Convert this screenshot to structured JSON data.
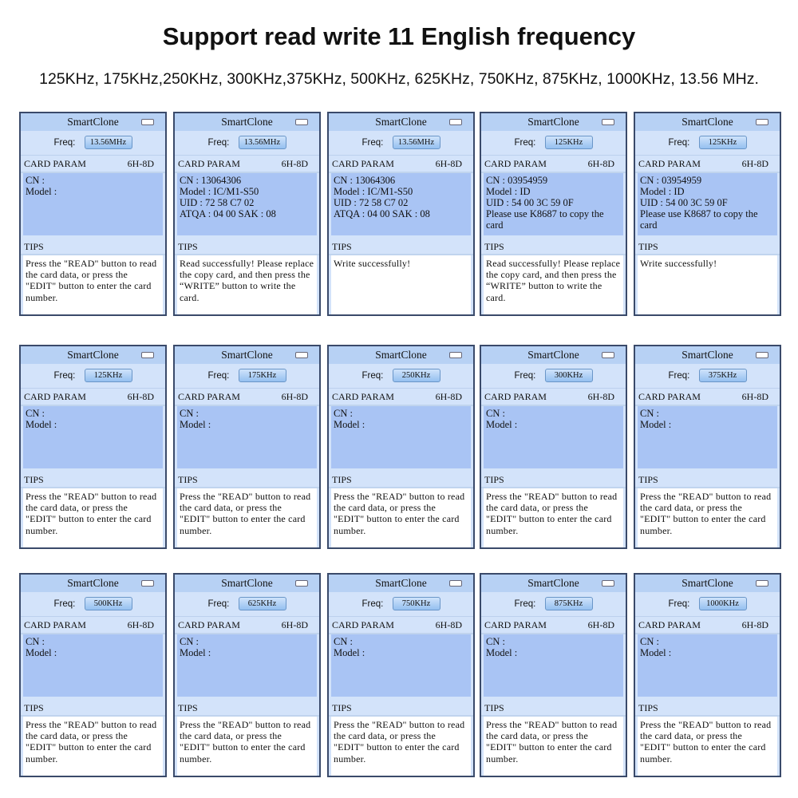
{
  "title": "Support read write 11 English frequency",
  "subtitle": "125KHz, 175KHz,250KHz, 300KHz,375KHz, 500KHz, 625KHz, 750KHz, 875KHz, 1000KHz, 13.56 MHz.",
  "common": {
    "app_name": "SmartClone",
    "freq_label": "Freq:",
    "card_param_label": "CARD PARAM",
    "card_param_code": "6H-8D",
    "tips_label": "TIPS",
    "battery_icon": "battery-icon"
  },
  "panels": [
    {
      "freq": "13.56MHz",
      "lines": [
        "CN :",
        "Model :"
      ],
      "tips": "Press the \"READ\"  button to read the card data, or press the \"EDIT\" button to enter the card number."
    },
    {
      "freq": "13.56MHz",
      "lines": [
        "CN : 13064306",
        "Model : IC/M1-S50",
        "UID : 72 58 C7 02",
        "ATQA : 04 00  SAK : 08"
      ],
      "tips": "Read successfully! Please replace the copy card, and then press the “WRITE” button to write the card."
    },
    {
      "freq": "13.56MHz",
      "lines": [
        "CN : 13064306",
        "Model : IC/M1-S50",
        "UID : 72 58 C7 02",
        "ATQA : 04 00  SAK : 08"
      ],
      "tips": "Write successfully!"
    },
    {
      "freq": "125KHz",
      "lines": [
        "CN : 03954959",
        "Model : ID",
        "UID : 54 00 3C 59 0F",
        "Please use K8687 to copy the card"
      ],
      "tips": "Read successfully! Please replace the copy card, and then press the “WRITE” button to write the card."
    },
    {
      "freq": "125KHz",
      "lines": [
        "CN : 03954959",
        "Model : ID",
        "UID : 54 00 3C 59 0F",
        "Please use K8687 to copy the card"
      ],
      "tips": "Write successfully!"
    },
    {
      "freq": "125KHz",
      "lines": [
        "CN :",
        "Model :"
      ],
      "tips": "Press the \"READ\"  button to read the card data, or press the \"EDIT\" button to enter the card number."
    },
    {
      "freq": "175KHz",
      "lines": [
        "CN :",
        "Model :"
      ],
      "tips": "Press the \"READ\"  button to read the card data, or press the \"EDIT\" button to enter the card number."
    },
    {
      "freq": "250KHz",
      "lines": [
        "CN :",
        "Model :"
      ],
      "tips": "Press the \"READ\"  button to read the card data, or press the \"EDIT\" button to enter the card number."
    },
    {
      "freq": "300KHz",
      "lines": [
        "CN :",
        "Model :"
      ],
      "tips": "Press the \"READ\"  button to read the card data, or press the \"EDIT\" button to enter the card number."
    },
    {
      "freq": "375KHz",
      "lines": [
        "CN :",
        "Model :"
      ],
      "tips": "Press the \"READ\"  button to read the card data, or press the \"EDIT\" button to enter the card number."
    },
    {
      "freq": "500KHz",
      "lines": [
        "CN :",
        "Model :"
      ],
      "tips": "Press the \"READ\"  button to read the card data, or press the \"EDIT\" button to enter the card number."
    },
    {
      "freq": "625KHz",
      "lines": [
        "CN :",
        "Model :"
      ],
      "tips": "Press the \"READ\"  button to read the card data, or press the \"EDIT\" button to enter the card number."
    },
    {
      "freq": "750KHz",
      "lines": [
        "CN :",
        "Model :"
      ],
      "tips": "Press the \"READ\"  button to read the card data, or press the \"EDIT\" button to enter the card number."
    },
    {
      "freq": "875KHz",
      "lines": [
        "CN :",
        "Model :"
      ],
      "tips": "Press the \"READ\"  button to read the card data, or press the \"EDIT\" button to enter the card number."
    },
    {
      "freq": "1000KHz",
      "lines": [
        "CN :",
        "Model :"
      ],
      "tips": "Press the \"READ\"  button to read the card data, or press the \"EDIT\" button to enter the card number."
    }
  ]
}
